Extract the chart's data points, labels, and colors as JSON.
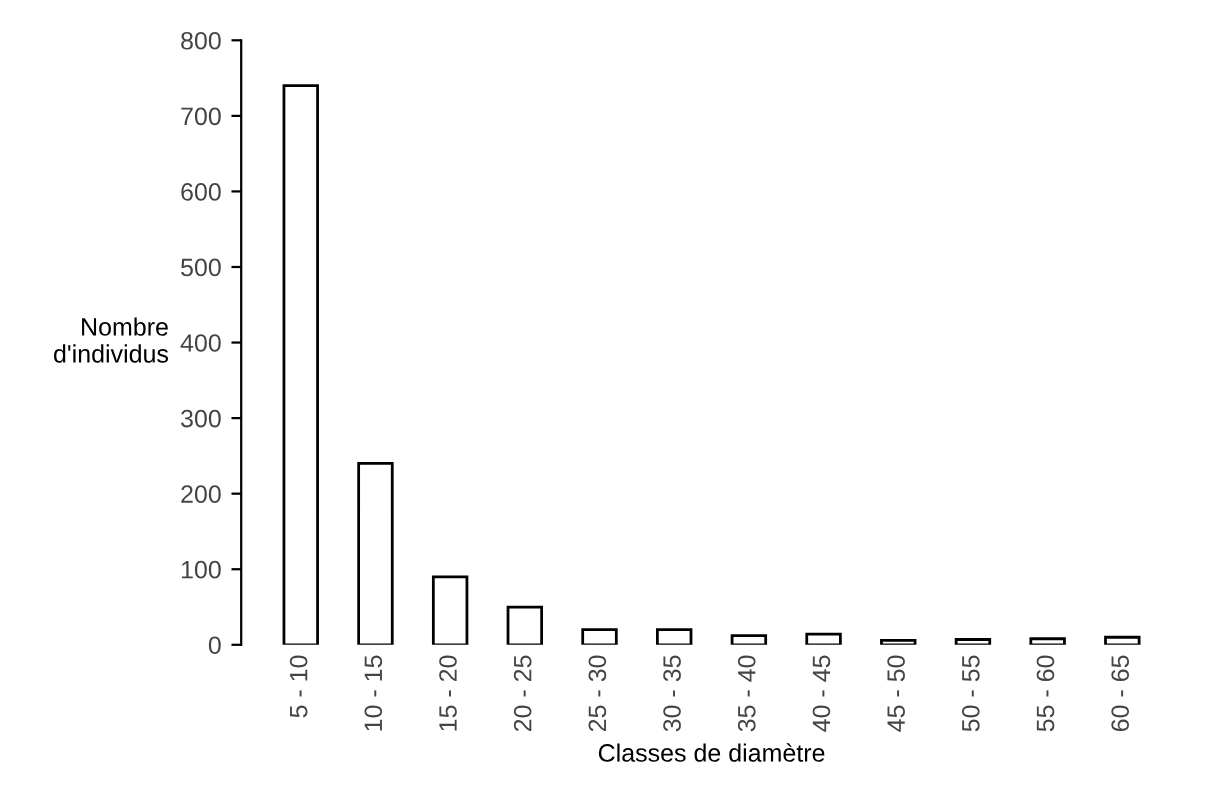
{
  "chart_data": {
    "type": "bar",
    "xlabel": "Classes de diamètre",
    "ylabel": "Nombre\nd'individus",
    "categories": [
      "5 - 10",
      "10 - 15",
      "15 - 20",
      "20 - 25",
      "25 - 30",
      "30 - 35",
      "35 - 40",
      "40 - 45",
      "45 - 50",
      "50 - 55",
      "55 - 60",
      "60 - 65"
    ],
    "values": [
      740,
      240,
      90,
      50,
      20,
      20,
      12,
      14,
      6,
      7,
      8,
      10
    ],
    "color": "#ffffff",
    "ylim": [
      0,
      800
    ],
    "yticks": [
      0,
      100,
      200,
      300,
      400,
      500,
      600,
      700,
      800
    ],
    "grid": false
  }
}
